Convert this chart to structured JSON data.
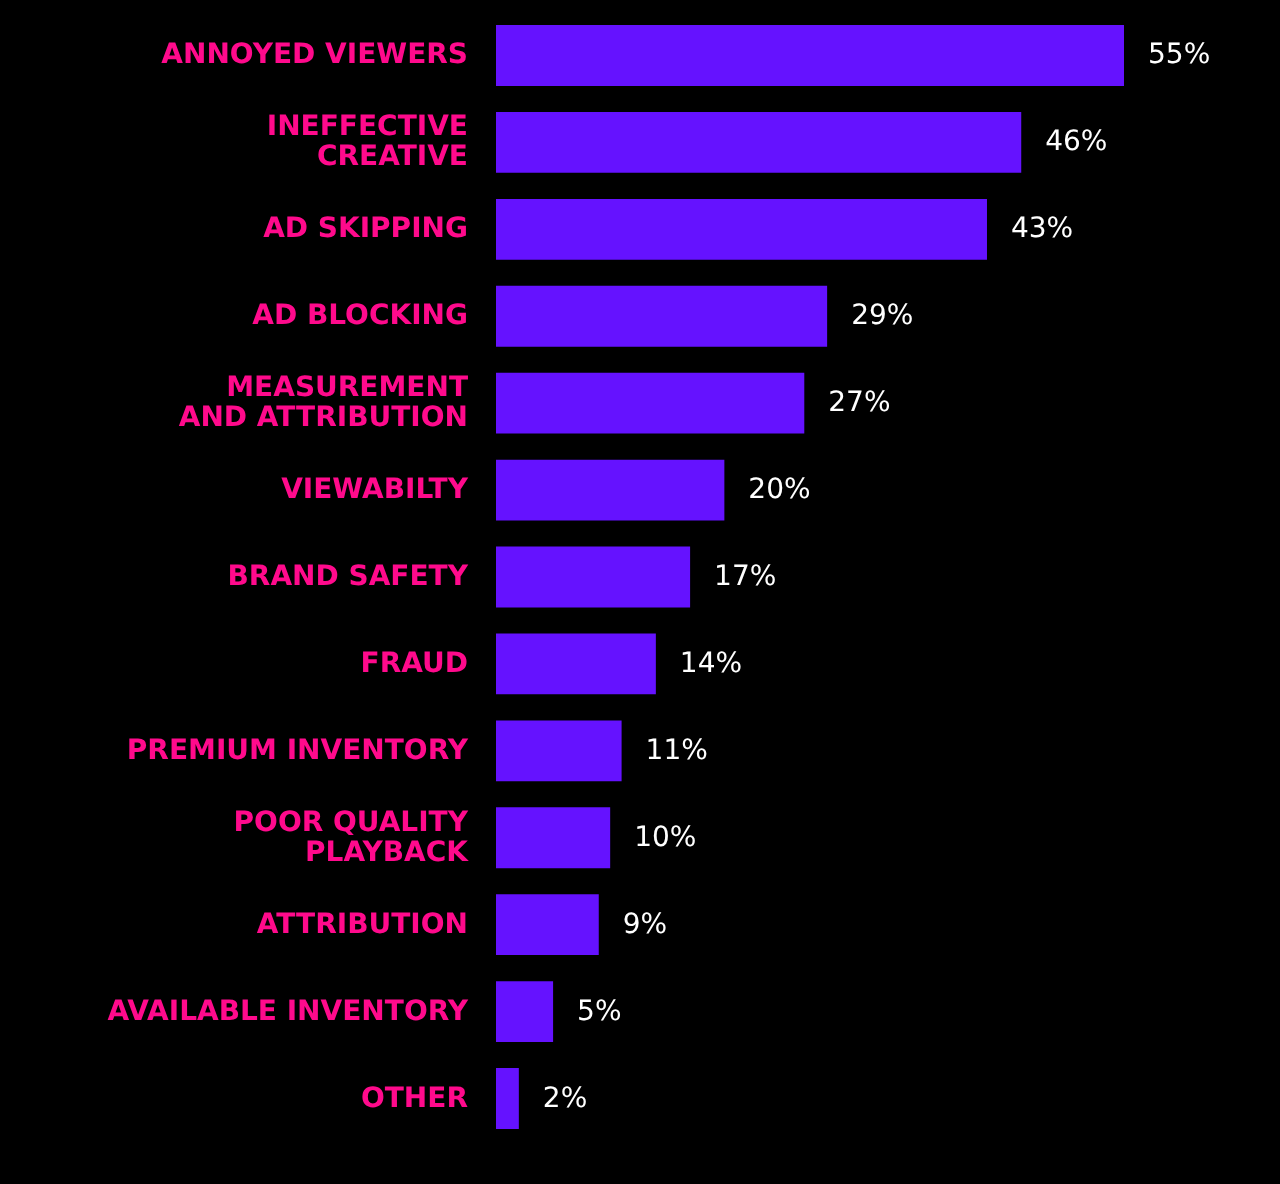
{
  "chart_data": {
    "type": "bar",
    "orientation": "horizontal",
    "categories": [
      "ANNOYED VIEWERS",
      "INEFFECTIVE\nCREATIVE",
      "AD SKIPPING",
      "AD BLOCKING",
      "MEASUREMENT\nAND ATTRIBUTION",
      "VIEWABILTY",
      "BRAND SAFETY",
      "FRAUD",
      "PREMIUM INVENTORY",
      "POOR QUALITY\nPLAYBACK",
      "ATTRIBUTION",
      "AVAILABLE INVENTORY",
      "OTHER"
    ],
    "values": [
      55,
      46,
      43,
      29,
      27,
      20,
      17,
      14,
      11,
      10,
      9,
      5,
      2
    ],
    "value_labels": [
      "55%",
      "46%",
      "43%",
      "29%",
      "27%",
      "20%",
      "17%",
      "14%",
      "11%",
      "10%",
      "9%",
      "5%",
      "2%"
    ],
    "color": "#6512ff"
  }
}
